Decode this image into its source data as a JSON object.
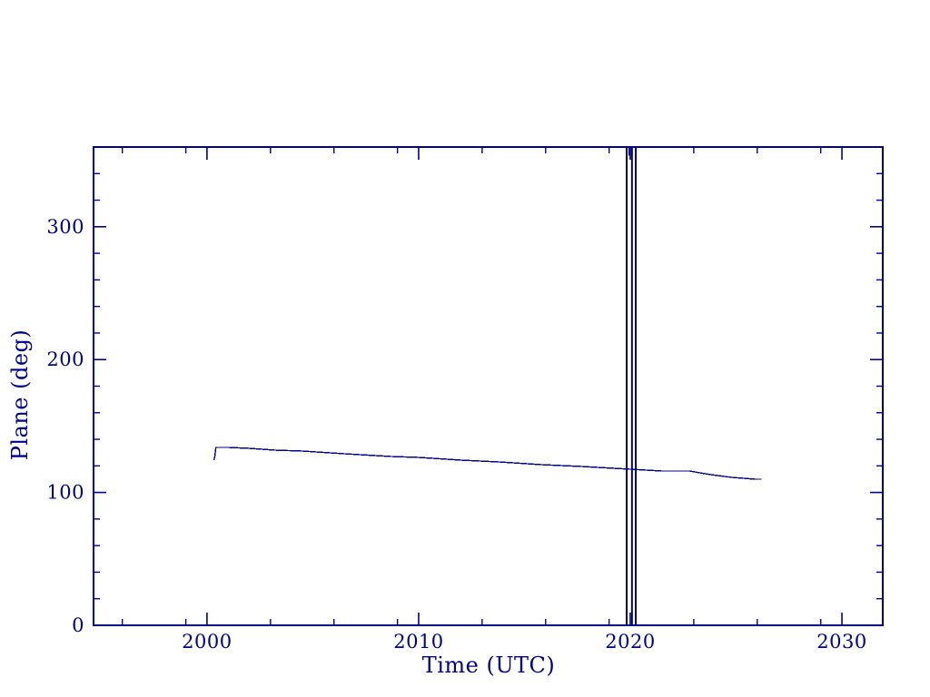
{
  "figure": {
    "background": "#ffffff",
    "accent_color": "#00008B",
    "frame_color": "#00008B"
  },
  "chart_data": {
    "type": "line",
    "title": "",
    "xlabel": "Time (UTC)",
    "ylabel": "Plane (deg)",
    "xlim": [
      1994.64,
      2031.93
    ],
    "ylim": [
      0,
      360
    ],
    "grid": false,
    "legend": null,
    "x_major_ticks": [
      2000,
      2010,
      2020,
      2030
    ],
    "x_major_labels": [
      "2000",
      "2010",
      "2020",
      "2030"
    ],
    "x_minor_ticks": [
      1996,
      1999,
      2003,
      2006,
      2009,
      2013,
      2016,
      2019,
      2023,
      2026,
      2029
    ],
    "y_major_ticks": [
      0,
      100,
      200,
      300
    ],
    "y_major_labels": [
      "0",
      "100",
      "200",
      "300"
    ],
    "y_minor_ticks": [
      20,
      40,
      60,
      80,
      120,
      140,
      160,
      180,
      220,
      240,
      260,
      280,
      320,
      340
    ],
    "series": [
      {
        "name": "plane-angle",
        "color": "#00008B",
        "x": [
          2000.33,
          2000.37,
          2000.42,
          2001.0,
          2002.0,
          2003.2,
          2004.5,
          2006.5,
          2008.7,
          2010.0,
          2012.0,
          2013.8,
          2015.8,
          2017.7,
          2020.0,
          2021.5,
          2022.8,
          2023.8,
          2024.8,
          2025.9,
          2026.2
        ],
        "y": [
          124.3,
          127.0,
          133.8,
          133.8,
          133.2,
          131.9,
          131.1,
          129.2,
          127.2,
          126.1,
          124.3,
          123.0,
          121.2,
          119.6,
          117.5,
          116.4,
          115.8,
          113.4,
          111.3,
          110.2,
          110.0
        ]
      }
    ],
    "vertical_wrap_lines": {
      "x": [
        2019.83,
        2020.08,
        2020.26
      ],
      "y_from": 0,
      "y_to": 360
    },
    "top_stub": {
      "x": 2019.97,
      "y_from": 353.5,
      "y_to": 360
    }
  }
}
